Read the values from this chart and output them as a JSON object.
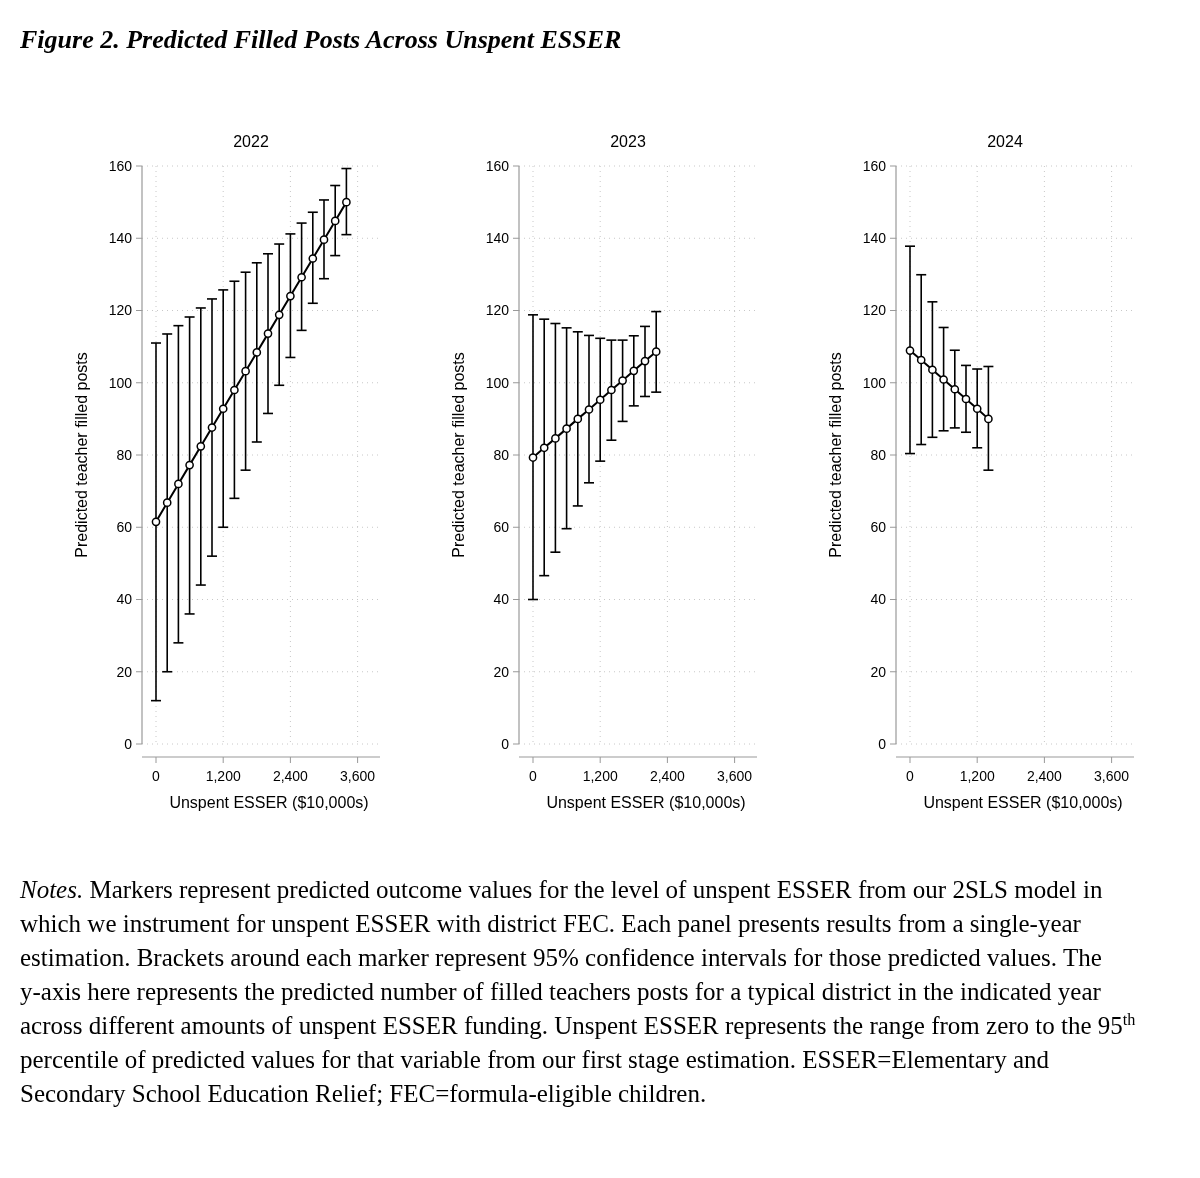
{
  "chart_data": [
    {
      "type": "line",
      "title": "2022",
      "xlabel": "Unspent ESSER ($10,000s)",
      "ylabel": "Predicted teacher filled posts",
      "annotations": [
        "Figure 2. Predicted Filled Posts Across Unspent ESSER",
        "Notes. Markers represent predicted outcome values for the level of unspent ESSER from our 2SLS model in which we instrument for unspent ESSER with district FEC. Each panel presents results from a single-year estimation. Brackets around each marker represent 95% confidence intervals for those predicted values. The y-axis here represents the predicted number of filled teachers posts for a typical district in the indicated year across different amounts of unspent ESSER funding. Unspent ESSER represents the range from zero to the 95$^{th}$ percentile of predicted values for that variable from our first stage estimation. ESSER=Elementary and Secondary School Education Relief; FEC=formula-eligible children."
      ],
      "x": [
        0,
        200,
        400,
        600,
        800,
        1000,
        1200,
        1400,
        1600,
        1800,
        2000,
        2200,
        2400,
        2600,
        2800,
        3000,
        3200,
        3400
      ],
      "xticks": [
        {
          "value": 0,
          "label": "0"
        },
        {
          "value": 1200,
          "label": "1,200"
        },
        {
          "value": 2400,
          "label": "2,400"
        },
        {
          "value": 3600,
          "label": "3,600"
        }
      ],
      "series": [
        {
          "color": "#000000",
          "values": [
            61.5,
            66.8,
            72,
            77.2,
            82.4,
            87.6,
            92.8,
            98,
            103.2,
            108.4,
            113.6,
            118.8,
            124,
            129.2,
            134.4,
            139.6,
            144.8,
            150
          ],
          "errors": [
            [
              12,
              111
            ],
            [
              20,
              113.5
            ],
            [
              28,
              115.8
            ],
            [
              36,
              118.2
            ],
            [
              44,
              120.7
            ],
            [
              52,
              123.2
            ],
            [
              60,
              125.7
            ],
            [
              68,
              128.1
            ],
            [
              75.8,
              130.6
            ],
            [
              83.6,
              133.2
            ],
            [
              91.5,
              135.7
            ],
            [
              99.3,
              138.4
            ],
            [
              107,
              141.2
            ],
            [
              114.5,
              144.2
            ],
            [
              122,
              147.2
            ],
            [
              128.8,
              150.6
            ],
            [
              135.2,
              154.6
            ],
            [
              141,
              159.3
            ]
          ]
        }
      ],
      "xlim": [
        -250,
        4000
      ],
      "ylim": [
        0,
        160
      ],
      "yticks": [
        0,
        20,
        40,
        60,
        80,
        100,
        120,
        140,
        160
      ],
      "grid": true,
      "marker": "circle"
    },
    {
      "type": "line",
      "title": "2023",
      "xlabel": "Unspent ESSER ($10,000s)",
      "ylabel": "Predicted teacher filled posts",
      "x": [
        0,
        200,
        400,
        600,
        800,
        1000,
        1200,
        1400,
        1600,
        1800,
        2000,
        2200
      ],
      "series": [
        {
          "color": "#000000",
          "values": [
            79.3,
            82,
            84.6,
            87.3,
            90,
            92.6,
            95.3,
            98,
            100.6,
            103.3,
            106,
            108.6
          ],
          "errors": [
            [
              40,
              118.8
            ],
            [
              46.6,
              117.6
            ],
            [
              53.1,
              116.4
            ],
            [
              59.6,
              115.2
            ],
            [
              65.9,
              114.1
            ],
            [
              72.3,
              113.1
            ],
            [
              78.3,
              112.3
            ],
            [
              84.1,
              111.8
            ],
            [
              89.3,
              111.8
            ],
            [
              93.6,
              113
            ],
            [
              96.2,
              115.6
            ],
            [
              97.4,
              119.7
            ]
          ]
        }
      ],
      "xlim": [
        -250,
        4000
      ],
      "xticks": [
        {
          "value": 0,
          "label": "0"
        },
        {
          "value": 1200,
          "label": "1,200"
        },
        {
          "value": 2400,
          "label": "2,400"
        },
        {
          "value": 3600,
          "label": "3,600"
        }
      ],
      "ylim": [
        0,
        160
      ],
      "yticks": [
        0,
        20,
        40,
        60,
        80,
        100,
        120,
        140,
        160
      ],
      "grid": true,
      "marker": "circle"
    },
    {
      "type": "line",
      "title": "2024",
      "xlabel": "Unspent ESSER ($10,000s)",
      "ylabel": "Predicted teacher filled posts",
      "x": [
        0,
        200,
        400,
        600,
        800,
        1000,
        1200,
        1400
      ],
      "series": [
        {
          "color": "#000000",
          "values": [
            108.9,
            106.3,
            103.6,
            100.9,
            98.2,
            95.5,
            92.8,
            90
          ],
          "errors": [
            [
              80.4,
              137.8
            ],
            [
              82.9,
              129.9
            ],
            [
              84.9,
              122.4
            ],
            [
              86.7,
              115.3
            ],
            [
              87.5,
              109
            ],
            [
              86.3,
              104.8
            ],
            [
              82,
              103.8
            ],
            [
              75.8,
              104.5
            ]
          ]
        }
      ],
      "xlim": [
        -250,
        4000
      ],
      "xticks": [
        {
          "value": 0,
          "label": "0"
        },
        {
          "value": 1200,
          "label": "1,200"
        },
        {
          "value": 2400,
          "label": "2,400"
        },
        {
          "value": 3600,
          "label": "3,600"
        }
      ],
      "ylim": [
        0,
        160
      ],
      "yticks": [
        0,
        20,
        40,
        60,
        80,
        100,
        120,
        140,
        160
      ],
      "grid": true,
      "marker": "circle"
    }
  ]
}
